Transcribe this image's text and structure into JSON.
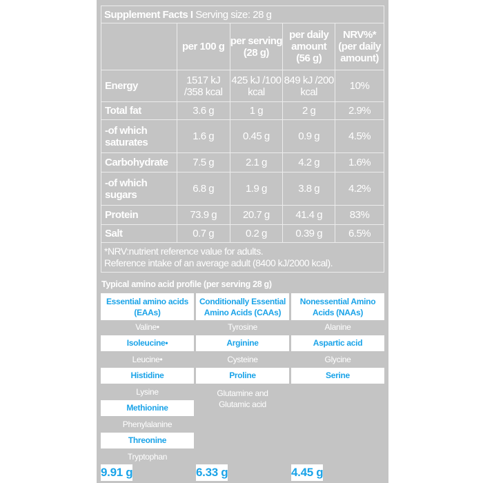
{
  "facts": {
    "title_bold": "Supplement Facts I",
    "title_rest": " Serving size: 28 g",
    "headers": [
      "per 100 g",
      "per serving (28 g)",
      "per daily amount (56 g)",
      "NRV%* (per daily amount)"
    ],
    "rows": [
      {
        "label": "Energy",
        "values": [
          "1517 kJ /358 kcal",
          "425 kJ /100 kcal",
          "849 kJ /200 kcal",
          "10%"
        ]
      },
      {
        "label": "Total fat",
        "values": [
          "3.6 g",
          "1 g",
          "2 g",
          "2.9%"
        ]
      },
      {
        "label": "-of which saturates",
        "values": [
          "1.6 g",
          "0.45 g",
          "0.9 g",
          "4.5%"
        ]
      },
      {
        "label": "Carbohydrate",
        "values": [
          "7.5 g",
          "2.1 g",
          "4.2 g",
          "1.6%"
        ]
      },
      {
        "label": "-of which sugars",
        "values": [
          "6.8 g",
          "1.9 g",
          "3.8 g",
          "4.2%"
        ]
      },
      {
        "label": "Protein",
        "values": [
          "73.9 g",
          "20.7 g",
          "41.4 g",
          "83%"
        ]
      },
      {
        "label": "Salt",
        "values": [
          "0.7 g",
          "0.2 g",
          "0.39 g",
          "6.5%"
        ]
      }
    ],
    "footnote_line1": "*NRV:nutrient reference value for adults.",
    "footnote_line2": "Reference intake of an average adult (8400 kJ/2000 kcal)."
  },
  "amino": {
    "title": "Typical amino acid profile (per serving 28 g)",
    "columns": [
      {
        "header": "Essential amino acids (EAAs)",
        "items": [
          "Valine•",
          "Isoleucine•",
          "Leucine•",
          "Histidine",
          "Lysine",
          "Methionine",
          "Phenylalanine",
          "Threonine",
          "Tryptophan"
        ],
        "total": "9.91  g"
      },
      {
        "header": "Conditionally Essential Amino Acids (CAAs)",
        "items": [
          "Tyrosine",
          "Arginine",
          "Cysteine",
          "Proline",
          "Glutamine and Glutamic acid"
        ],
        "total": "6.33 g"
      },
      {
        "header": "Nonessential Amino Acids (NAAs)",
        "items": [
          "Alanine",
          "Aspartic acid",
          "Glycine",
          "Serine"
        ],
        "total": "4.45 g"
      }
    ]
  },
  "colors": {
    "panel": "#c4c4c4",
    "accent": "#1aa3e8"
  }
}
